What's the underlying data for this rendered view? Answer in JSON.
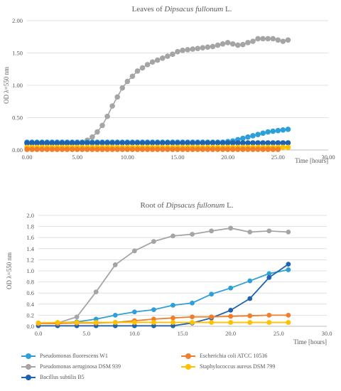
{
  "legend": [
    {
      "name": "Pseudomonas fluorescens W1",
      "color": "#2E9FD9"
    },
    {
      "name": "Escherichia coli ATCC 10536",
      "color": "#F07E2A"
    },
    {
      "name": "Pseudomonas aeruginosa  DSM 939",
      "color": "#A5A5A5"
    },
    {
      "name": "Staphylococcus aureus DSM 799",
      "color": "#FFC000"
    },
    {
      "name": "Bacillus subtilis B5",
      "color": "#1F63B0"
    }
  ],
  "chart_data": [
    {
      "type": "line",
      "title_parts": [
        "Leaves of ",
        "Dipsacus fullonum",
        " L."
      ],
      "xlabel": "Time [hours]",
      "ylabel": "OD λ=550 nm",
      "xlim": [
        0,
        30
      ],
      "ylim": [
        0,
        2
      ],
      "xticks": [
        "0.00",
        "5.00",
        "10.00",
        "15.00",
        "20.00",
        "25.00",
        "30.00"
      ],
      "yticks": [
        "0.00",
        "0.50",
        "1.00",
        "1.50",
        "2.00"
      ],
      "grid": true,
      "x": [
        0,
        0.5,
        1,
        1.5,
        2,
        2.5,
        3,
        3.5,
        4,
        4.5,
        5,
        5.5,
        6,
        6.5,
        7,
        7.5,
        8,
        8.5,
        9,
        9.5,
        10,
        10.5,
        11,
        11.5,
        12,
        12.5,
        13,
        13.5,
        14,
        14.5,
        15,
        15.5,
        16,
        16.5,
        17,
        17.5,
        18,
        18.5,
        19,
        19.5,
        20,
        20.5,
        21,
        21.5,
        22,
        22.5,
        23,
        23.5,
        24,
        24.5,
        25,
        25.5,
        26
      ],
      "series": [
        {
          "name": "Pseudomonas aeruginosa  DSM 939",
          "color": "#A5A5A5",
          "values": [
            0.1,
            0.1,
            0.1,
            0.1,
            0.1,
            0.1,
            0.1,
            0.1,
            0.1,
            0.1,
            0.1,
            0.12,
            0.15,
            0.2,
            0.28,
            0.38,
            0.52,
            0.68,
            0.82,
            0.96,
            1.06,
            1.14,
            1.22,
            1.27,
            1.32,
            1.36,
            1.39,
            1.42,
            1.45,
            1.48,
            1.52,
            1.54,
            1.55,
            1.56,
            1.57,
            1.58,
            1.59,
            1.6,
            1.62,
            1.64,
            1.66,
            1.64,
            1.62,
            1.63,
            1.66,
            1.68,
            1.72,
            1.72,
            1.72,
            1.72,
            1.7,
            1.68,
            1.7
          ]
        },
        {
          "name": "Pseudomonas fluorescens W1",
          "color": "#2E9FD9",
          "values": [
            0.12,
            0.12,
            0.12,
            0.12,
            0.12,
            0.12,
            0.12,
            0.12,
            0.12,
            0.12,
            0.12,
            0.12,
            0.12,
            0.12,
            0.12,
            0.12,
            0.12,
            0.12,
            0.12,
            0.12,
            0.12,
            0.12,
            0.12,
            0.12,
            0.12,
            0.12,
            0.12,
            0.12,
            0.12,
            0.12,
            0.12,
            0.12,
            0.12,
            0.12,
            0.12,
            0.12,
            0.12,
            0.12,
            0.12,
            0.12,
            0.13,
            0.14,
            0.16,
            0.18,
            0.2,
            0.22,
            0.24,
            0.26,
            0.28,
            0.29,
            0.3,
            0.31,
            0.32
          ]
        },
        {
          "name": "Bacillus subtilis B5",
          "color": "#1F63B0",
          "values": [
            0.11,
            0.11,
            0.11,
            0.11,
            0.11,
            0.11,
            0.11,
            0.11,
            0.11,
            0.11,
            0.11,
            0.11,
            0.11,
            0.11,
            0.11,
            0.11,
            0.11,
            0.11,
            0.11,
            0.11,
            0.11,
            0.11,
            0.11,
            0.11,
            0.11,
            0.11,
            0.11,
            0.11,
            0.11,
            0.11,
            0.11,
            0.11,
            0.11,
            0.11,
            0.11,
            0.11,
            0.11,
            0.11,
            0.11,
            0.11,
            0.11,
            0.11,
            0.11,
            0.11,
            0.11,
            0.11,
            0.11,
            0.11,
            0.11,
            0.11,
            0.11,
            0.11,
            0.11
          ]
        },
        {
          "name": "Staphylococcus aureus DSM 799",
          "color": "#FFC000",
          "values": [
            0.04,
            0.04,
            0.04,
            0.04,
            0.04,
            0.04,
            0.04,
            0.04,
            0.04,
            0.04,
            0.04,
            0.04,
            0.04,
            0.04,
            0.04,
            0.04,
            0.04,
            0.04,
            0.04,
            0.04,
            0.04,
            0.04,
            0.04,
            0.04,
            0.04,
            0.04,
            0.04,
            0.04,
            0.04,
            0.04,
            0.04,
            0.04,
            0.04,
            0.04,
            0.04,
            0.04,
            0.04,
            0.04,
            0.04,
            0.04,
            0.04,
            0.04,
            0.04,
            0.04,
            0.04,
            0.04,
            0.04,
            0.04,
            0.04,
            0.04,
            0.04,
            0.04,
            0.04
          ]
        },
        {
          "name": "Escherichia coli ATCC 10536",
          "color": "#F07E2A",
          "values": [
            0.01,
            0.01,
            0.01,
            0.01,
            0.01,
            0.01,
            0.01,
            0.01,
            0.01,
            0.01,
            0.01,
            0.01,
            0.01,
            0.01,
            0.01,
            0.01,
            0.01,
            0.01,
            0.01,
            0.01,
            0.01,
            0.01,
            0.01,
            0.01,
            0.01,
            0.01,
            0.01,
            0.01,
            0.01,
            0.01,
            0.01,
            0.01,
            0.01,
            0.01,
            0.01,
            0.01,
            0.01,
            0.01,
            0.01,
            0.01,
            0.01,
            0.01,
            0.01,
            0.01,
            0.01,
            0.01,
            0.01,
            0.01,
            0.01,
            0.01,
            0.01,
            null,
            null
          ]
        }
      ]
    },
    {
      "type": "line",
      "title_parts": [
        "Root of ",
        "Dipsacus fullonum",
        " L."
      ],
      "xlabel": "Time [hours]",
      "ylabel": "OD λ=550 nm",
      "xlim": [
        0,
        30
      ],
      "ylim": [
        0,
        2
      ],
      "xticks": [
        "0.0",
        "5.0",
        "10.0",
        "15.0",
        "20.0",
        "25.0",
        "30.0"
      ],
      "yticks": [
        "0.0",
        "0.2",
        "0.4",
        "0.6",
        "0.8",
        "1.0",
        "1.2",
        "1.4",
        "1.6",
        "1.8",
        "2.0"
      ],
      "grid": true,
      "x": [
        0,
        2,
        4,
        6,
        8,
        10,
        12,
        14,
        16,
        18,
        20,
        22,
        24,
        26
      ],
      "series": [
        {
          "name": "Pseudomonas aeruginosa  DSM 939",
          "color": "#A5A5A5",
          "values": [
            0.06,
            0.06,
            0.17,
            0.62,
            1.11,
            1.36,
            1.53,
            1.63,
            1.66,
            1.72,
            1.77,
            1.7,
            1.72,
            1.7
          ]
        },
        {
          "name": "Pseudomonas fluorescens W1",
          "color": "#2E9FD9",
          "values": [
            0.06,
            0.06,
            0.08,
            0.13,
            0.2,
            0.26,
            0.3,
            0.38,
            0.42,
            0.58,
            0.69,
            0.82,
            0.95,
            1.02
          ]
        },
        {
          "name": "Bacillus subtilis B5",
          "color": "#1F63B0",
          "values": [
            0.01,
            0.01,
            0.01,
            0.01,
            0.01,
            0.01,
            0.01,
            0.01,
            0.06,
            0.15,
            0.29,
            0.5,
            0.88,
            1.12
          ]
        },
        {
          "name": "Escherichia coli ATCC 10536",
          "color": "#F07E2A",
          "values": [
            0.05,
            0.05,
            0.06,
            0.06,
            0.07,
            0.1,
            0.13,
            0.15,
            0.17,
            0.17,
            0.18,
            0.19,
            0.2,
            0.2
          ]
        },
        {
          "name": "Staphylococcus aureus DSM 799",
          "color": "#FFC000",
          "values": [
            0.06,
            0.07,
            0.07,
            0.07,
            0.07,
            0.07,
            0.07,
            0.07,
            0.07,
            0.07,
            0.07,
            0.07,
            0.07,
            0.07
          ]
        }
      ]
    }
  ]
}
